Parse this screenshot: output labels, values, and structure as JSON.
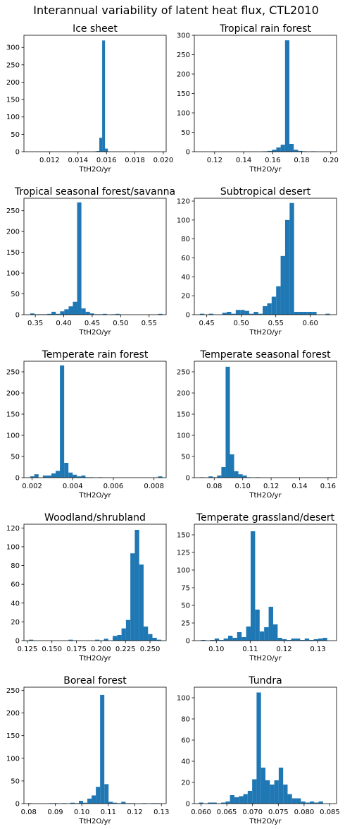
{
  "figure": {
    "title": "Interannual variability of latent heat flux, CTL2010",
    "background": "#ffffff",
    "bar_color": "#1f77b4"
  },
  "chart_data": [
    {
      "type": "bar",
      "title": "Ice sheet",
      "xlabel": "TtH2O/yr",
      "xlim": [
        0.0102,
        0.0202
      ],
      "ylim": [
        0,
        335
      ],
      "xticks": [
        "0.012",
        "0.014",
        "0.016",
        "0.018",
        "0.020"
      ],
      "yticks": [
        "0",
        "50",
        "100",
        "150",
        "200",
        "250",
        "300"
      ],
      "bin_start": 0.0151,
      "bin_width": 0.0002,
      "values": [
        1,
        2,
        40,
        320,
        9
      ]
    },
    {
      "type": "bar",
      "title": "Tropical rain forest",
      "xlabel": "TtH2O/yr",
      "xlim": [
        0.106,
        0.204
      ],
      "ylim": [
        0,
        300
      ],
      "xticks": [
        "0.12",
        "0.14",
        "0.16",
        "0.18",
        "0.20"
      ],
      "yticks": [
        "0",
        "50",
        "100",
        "150",
        "200",
        "250",
        "300"
      ],
      "bin_start": 0.1535,
      "bin_width": 0.003,
      "values": [
        1,
        2,
        5,
        11,
        18,
        287,
        20,
        5,
        2,
        1,
        0,
        1
      ]
    },
    {
      "type": "bar",
      "title": "Tropical seasonal forest/savanna",
      "xlabel": "TtH2O/yr",
      "xlim": [
        0.33,
        0.58
      ],
      "ylim": [
        0,
        280
      ],
      "xticks": [
        "0.35",
        "0.40",
        "0.45",
        "0.50",
        "0.55"
      ],
      "yticks": [
        "0",
        "50",
        "100",
        "150",
        "200",
        "250"
      ],
      "bin_start": 0.341,
      "bin_width": 0.0075,
      "values": [
        3,
        1,
        1,
        1,
        2,
        7,
        2,
        8,
        13,
        20,
        31,
        270,
        15,
        7,
        3,
        1,
        1,
        2,
        0,
        1,
        2,
        0,
        0,
        0,
        0,
        0,
        0,
        0,
        0,
        0,
        2
      ]
    },
    {
      "type": "bar",
      "title": "Subtropical desert",
      "xlabel": "TtH2O/yr",
      "xlim": [
        0.432,
        0.638
      ],
      "ylim": [
        0,
        123
      ],
      "xticks": [
        "0.45",
        "0.50",
        "0.55",
        "0.60"
      ],
      "yticks": [
        "0",
        "20",
        "40",
        "60",
        "80",
        "100",
        "120"
      ],
      "bin_start": 0.44,
      "bin_width": 0.0065,
      "values": [
        1,
        0,
        1,
        0,
        0,
        2,
        3,
        1,
        5,
        5,
        4,
        1,
        3,
        1,
        9,
        12,
        19,
        30,
        62,
        100,
        118,
        3,
        3,
        3,
        3,
        3,
        0,
        0,
        1
      ]
    },
    {
      "type": "bar",
      "title": "Temperate rain forest",
      "xlabel": "TtH2O/yr",
      "xlim": [
        0.0016,
        0.0086
      ],
      "ylim": [
        0,
        275
      ],
      "xticks": [
        "0.002",
        "0.004",
        "0.006",
        "0.008"
      ],
      "yticks": [
        "0",
        "50",
        "100",
        "150",
        "200",
        "250"
      ],
      "bin_start": 0.0019,
      "bin_width": 0.00021,
      "values": [
        3,
        8,
        0,
        5,
        5,
        10,
        16,
        265,
        35,
        12,
        7,
        3,
        5,
        1,
        1,
        0,
        1,
        0,
        0,
        0,
        0,
        0,
        0,
        0,
        0,
        0,
        0,
        0,
        0,
        0,
        3
      ]
    },
    {
      "type": "bar",
      "title": "Temperate seasonal forest",
      "xlabel": "TtH2O/yr",
      "xlim": [
        0.066,
        0.166
      ],
      "ylim": [
        0,
        275
      ],
      "xticks": [
        "0.08",
        "0.10",
        "0.12",
        "0.14",
        "0.16"
      ],
      "yticks": [
        "0",
        "50",
        "100",
        "150",
        "200",
        "250"
      ],
      "bin_start": 0.07,
      "bin_width": 0.003,
      "values": [
        1,
        0,
        3,
        1,
        5,
        25,
        262,
        55,
        15,
        8,
        5,
        1,
        0,
        1,
        0,
        0,
        0,
        0,
        0,
        0,
        0,
        0,
        0,
        0,
        0,
        0,
        0,
        0,
        0,
        0,
        1
      ]
    },
    {
      "type": "bar",
      "title": "Woodland/shrubland",
      "xlabel": "TtH2O/yr",
      "xlim": [
        0.1215,
        0.2665
      ],
      "ylim": [
        0,
        124
      ],
      "xticks": [
        "0.125",
        "0.150",
        "0.175",
        "0.200",
        "0.225",
        "0.250"
      ],
      "yticks": [
        "0",
        "20",
        "40",
        "60",
        "80",
        "100",
        "120"
      ],
      "bin_start": 0.1265,
      "bin_width": 0.0045,
      "values": [
        1,
        0,
        0,
        0,
        0,
        0,
        0,
        0,
        0,
        1,
        0,
        0,
        0,
        0,
        0,
        1,
        0,
        2,
        0,
        5,
        6,
        13,
        22,
        93,
        118,
        81,
        15,
        7,
        3,
        1
      ]
    },
    {
      "type": "bar",
      "title": "Temperate grassland/desert",
      "xlabel": "TtH2O/yr",
      "xlim": [
        0.0935,
        0.1355
      ],
      "ylim": [
        0,
        165
      ],
      "xticks": [
        "0.10",
        "0.11",
        "0.12",
        "0.13"
      ],
      "yticks": [
        "0",
        "25",
        "50",
        "75",
        "100",
        "125",
        "150"
      ],
      "bin_start": 0.0955,
      "bin_width": 0.00133,
      "values": [
        1,
        0,
        1,
        3,
        1,
        3,
        7,
        4,
        12,
        5,
        20,
        155,
        44,
        13,
        19,
        48,
        23,
        4,
        2,
        1,
        3,
        3,
        1,
        3,
        1,
        2,
        3,
        4
      ]
    },
    {
      "type": "bar",
      "title": "Boreal forest",
      "xlabel": "TtH2O/yr",
      "xlim": [
        0.0782,
        0.1318
      ],
      "ylim": [
        0,
        257
      ],
      "xticks": [
        "0.08",
        "0.09",
        "0.10",
        "0.11",
        "0.12",
        "0.13"
      ],
      "yticks": [
        "0",
        "50",
        "100",
        "150",
        "200",
        "250"
      ],
      "bin_start": 0.0797,
      "bin_width": 0.0016,
      "values": [
        1,
        0,
        0,
        0,
        0,
        1,
        1,
        0,
        1,
        0,
        2,
        1,
        6,
        2,
        11,
        18,
        37,
        240,
        43,
        4,
        2,
        1,
        4,
        1,
        1,
        0,
        0,
        1,
        0,
        1,
        1
      ]
    },
    {
      "type": "bar",
      "title": "Tundra",
      "xlabel": "TtH2O/yr",
      "xlim": [
        0.0587,
        0.0863
      ],
      "ylim": [
        0,
        110
      ],
      "xticks": [
        "0.060",
        "0.065",
        "0.070",
        "0.075",
        "0.080",
        "0.085"
      ],
      "yticks": [
        "0",
        "20",
        "40",
        "60",
        "80",
        "100"
      ],
      "bin_start": 0.0596,
      "bin_width": 0.00086,
      "values": [
        1,
        0,
        1,
        1,
        0,
        1,
        2,
        8,
        6,
        7,
        9,
        12,
        23,
        105,
        34,
        22,
        18,
        22,
        34,
        18,
        9,
        5,
        5,
        2,
        1,
        2,
        1,
        2
      ]
    }
  ]
}
